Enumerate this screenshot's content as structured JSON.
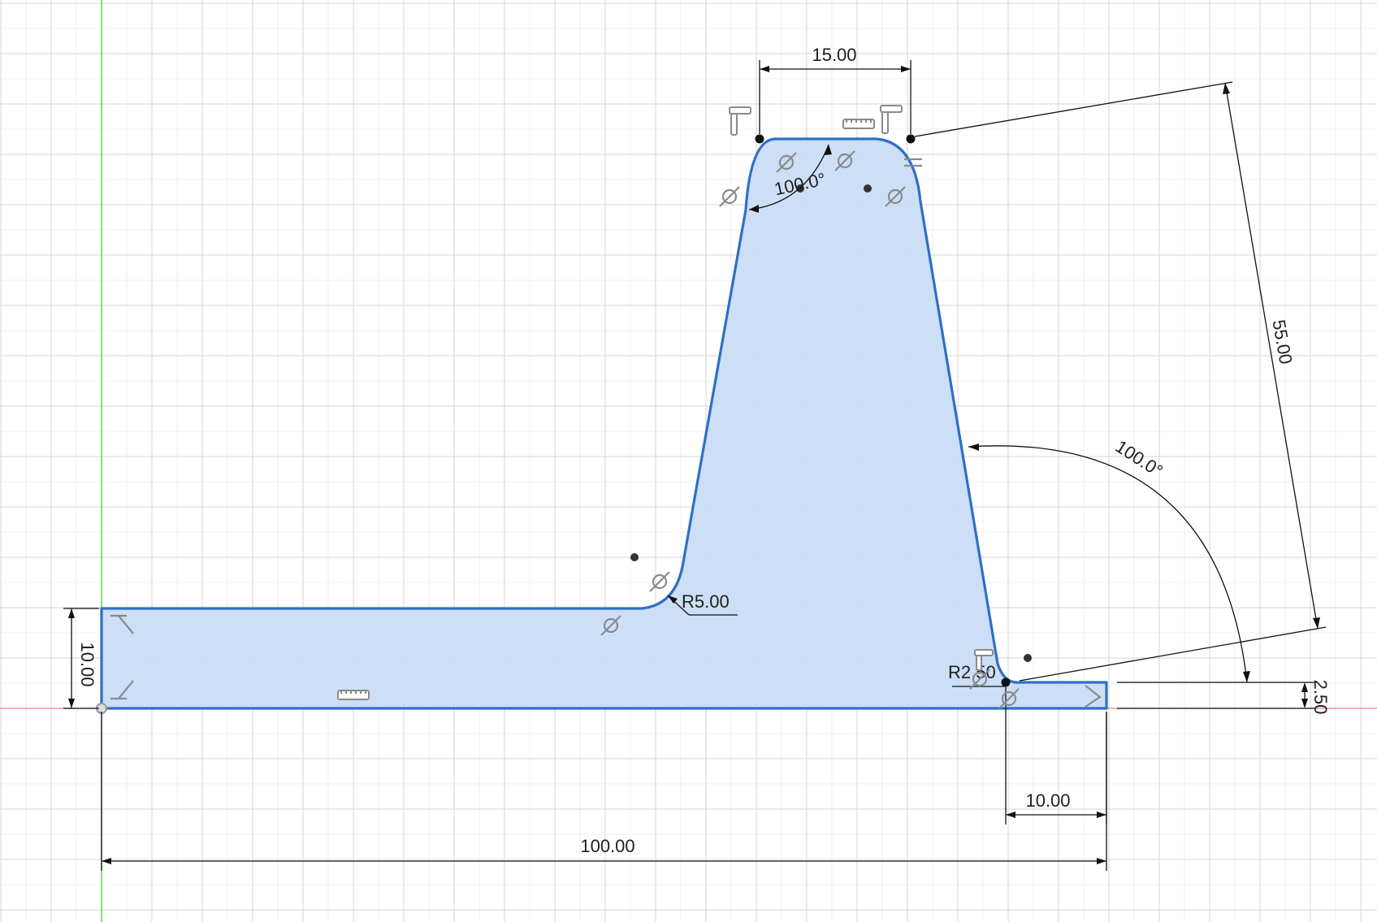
{
  "window": {
    "title": ""
  },
  "colors": {
    "background": "#ffffff",
    "grid_minor": "#ececec",
    "grid_major": "#d6d6d6",
    "y_axis": "#4fd04f",
    "x_axis": "#f08080",
    "profile_fill": "#c9ddf7",
    "profile_stroke": "#2f6fc6",
    "dimension": "#111111",
    "constraint_glyph": "#8a8a8a"
  },
  "dimensions": {
    "top_width": "15.00",
    "top_angle": "100.0°",
    "height": "55.00",
    "right_angle": "100.0°",
    "base_thickness": "10.00",
    "fillet_left": "R5.00",
    "fillet_right": "R2.50",
    "lip_height": "2.50",
    "lip_width": "10.00",
    "total_width": "100.00"
  },
  "constraint_icons": [
    "horizontal-constraint-icon",
    "perpendicular-constraint-icon",
    "tangent-constraint-icon",
    "coincident-constraint-icon",
    "fix-constraint-icon"
  ]
}
